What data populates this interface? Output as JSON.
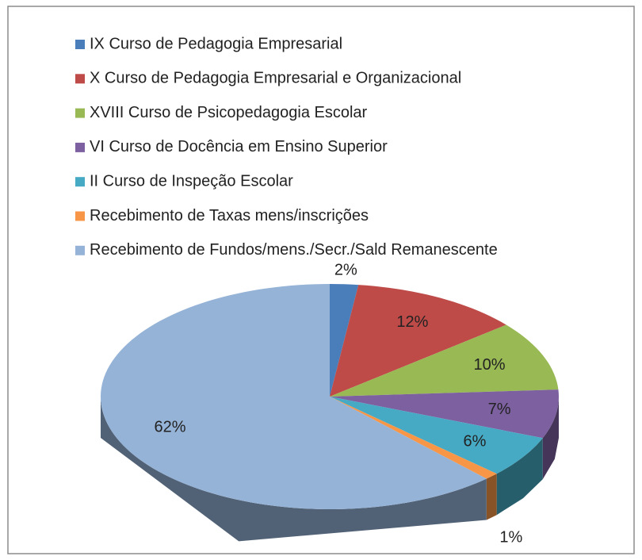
{
  "chart_data": {
    "type": "pie",
    "categories": [
      "IX Curso de Pedagogia Empresarial",
      "X Curso de Pedagogia Empresarial e Organizacional",
      "XVIII Curso de Psicopedagogia Escolar",
      "VI Curso de Docência em Ensino Superior",
      "II Curso de Inspeção Escolar",
      "Recebimento de Taxas mens/inscrições",
      "Recebimento de Fundos/mens./Secr./Sald Remanescente"
    ],
    "values": [
      2,
      12,
      10,
      7,
      6,
      1,
      62
    ],
    "value_labels": [
      "2%",
      "12%",
      "10%",
      "7%",
      "6%",
      "1%",
      "62%"
    ],
    "colors": [
      "#4a7ebb",
      "#be4b48",
      "#98b954",
      "#7d60a0",
      "#46aac5",
      "#f79646",
      "#95b3d7"
    ],
    "legend": "top"
  }
}
